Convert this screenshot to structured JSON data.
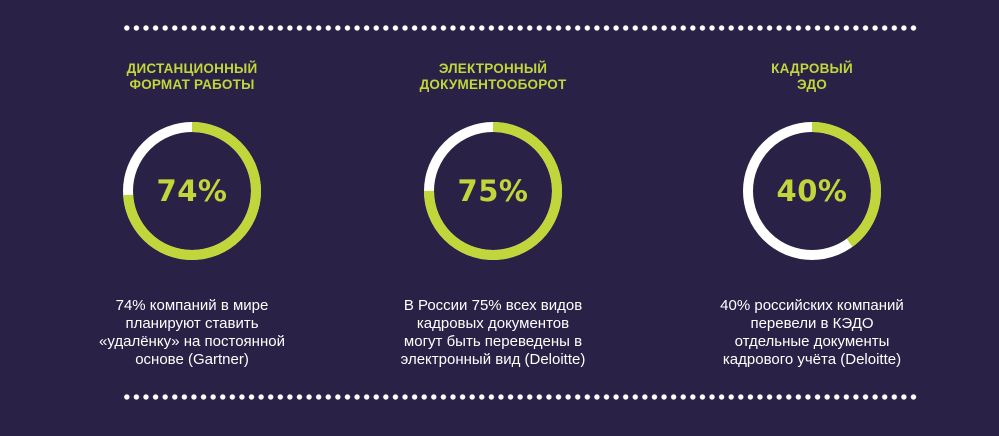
{
  "colors": {
    "background": "#2a2146",
    "accent": "#c0d63a",
    "track": "#ffffff",
    "text": "#ffffff"
  },
  "stats": [
    {
      "heading_lines": [
        "ДИСТАНЦИОННЫЙ",
        "ФОРМАТ РАБОТЫ"
      ],
      "value_label": "74%",
      "percent": 74,
      "description_lines": [
        "74% компаний в мире",
        "планируют ставить",
        "«удалёнку» на постоянной",
        "основе (Gartner)"
      ]
    },
    {
      "heading_lines": [
        "ЭЛЕКТРОННЫЙ",
        "ДОКУМЕНТООБОРОТ"
      ],
      "value_label": "75%",
      "percent": 75,
      "description_lines": [
        "В России 75% всех видов",
        "кадровых документов",
        "могут быть переведены в",
        "электронный вид (Deloitte)"
      ]
    },
    {
      "heading_lines": [
        "КАДРОВЫЙ",
        "ЭДО"
      ],
      "value_label": "40%",
      "percent": 40,
      "description_lines": [
        "40% российских компаний",
        "перевели в КЭДО",
        "отдельные документы",
        "кадрового учёта (Deloitte)"
      ]
    }
  ]
}
